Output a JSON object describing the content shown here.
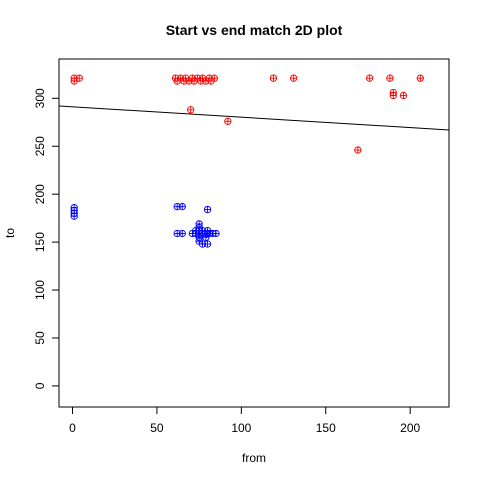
{
  "chart_data": {
    "type": "scatter",
    "title": "Start vs end match 2D plot",
    "xlabel": "from",
    "ylabel": "to",
    "xlim": [
      -8,
      223
    ],
    "ylim": [
      -22,
      341
    ],
    "xticks": [
      0,
      50,
      100,
      150,
      200
    ],
    "yticks": [
      0,
      50,
      100,
      150,
      200,
      250,
      300
    ],
    "marker": "circle-plus",
    "series": [
      {
        "name": "red",
        "color": "#ff0000",
        "points": [
          [
            1,
            318
          ],
          [
            1,
            321
          ],
          [
            4,
            321
          ],
          [
            61,
            321
          ],
          [
            62,
            318
          ],
          [
            64,
            321
          ],
          [
            66,
            318
          ],
          [
            67,
            321
          ],
          [
            69,
            318
          ],
          [
            71,
            321
          ],
          [
            72,
            318
          ],
          [
            74,
            321
          ],
          [
            76,
            318
          ],
          [
            77,
            321
          ],
          [
            79,
            318
          ],
          [
            81,
            321
          ],
          [
            82,
            318
          ],
          [
            84,
            321
          ],
          [
            70,
            288
          ],
          [
            92,
            276
          ],
          [
            119,
            321
          ],
          [
            131,
            321
          ],
          [
            169,
            246
          ],
          [
            176,
            321
          ],
          [
            188,
            321
          ],
          [
            190,
            306
          ],
          [
            190,
            303
          ],
          [
            196,
            303
          ],
          [
            206,
            321
          ]
        ]
      },
      {
        "name": "blue",
        "color": "#0000ff",
        "points": [
          [
            1,
            186
          ],
          [
            1,
            183
          ],
          [
            1,
            180
          ],
          [
            1,
            177
          ],
          [
            62,
            187
          ],
          [
            65,
            187
          ],
          [
            62,
            159
          ],
          [
            65,
            159
          ],
          [
            71,
            159
          ],
          [
            73,
            159
          ],
          [
            75,
            159
          ],
          [
            77,
            159
          ],
          [
            79,
            159
          ],
          [
            81,
            159
          ],
          [
            83,
            159
          ],
          [
            85,
            159
          ],
          [
            75,
            169
          ],
          [
            75,
            165
          ],
          [
            75,
            162
          ],
          [
            75,
            155
          ],
          [
            75,
            151
          ],
          [
            73,
            162
          ],
          [
            77,
            162
          ],
          [
            77,
            148
          ],
          [
            80,
            148
          ],
          [
            79,
            155
          ],
          [
            80,
            159
          ],
          [
            80,
            162
          ],
          [
            80,
            184
          ]
        ]
      }
    ],
    "fit_line": {
      "x": [
        -8,
        223
      ],
      "y": [
        292,
        267
      ],
      "color": "#000000"
    }
  }
}
